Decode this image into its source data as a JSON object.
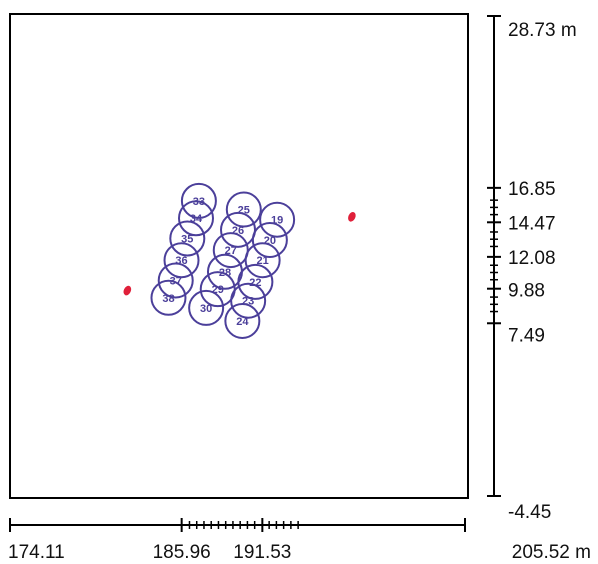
{
  "colors": {
    "frame": "#000000",
    "circle": "#4b3f9a",
    "marker": "#e0203a",
    "text": "#111111"
  },
  "x_axis": {
    "min": 174.11,
    "max": 205.52,
    "unit": "m",
    "labels": [
      {
        "text": "174.11",
        "value": 174.11
      },
      {
        "text": "185.96",
        "value": 185.96
      },
      {
        "text": "191.53",
        "value": 191.53
      },
      {
        "text": "205.52 m",
        "value": 205.52
      }
    ],
    "minor_ticks": [
      186.5,
      187.0,
      187.5,
      188.0,
      188.5,
      189.0,
      189.5,
      190.0,
      190.5,
      191.0,
      192.0,
      192.5,
      193.0,
      193.5,
      194.0
    ]
  },
  "y_axis": {
    "min": -4.45,
    "max": 28.73,
    "unit": "m",
    "labels": [
      {
        "text": "28.73 m",
        "value": 28.73
      },
      {
        "text": "16.85",
        "value": 16.85
      },
      {
        "text": "14.47",
        "value": 14.47
      },
      {
        "text": "12.08",
        "value": 12.08
      },
      {
        "text": "9.88",
        "value": 9.88
      },
      {
        "text": "7.49",
        "value": 7.49
      },
      {
        "text": "-4.45",
        "value": -4.45
      }
    ],
    "minor_ticks": [
      16.0,
      15.5,
      15.0,
      13.8,
      13.3,
      12.8,
      11.5,
      11.0,
      10.5,
      9.3,
      8.8,
      8.3
    ]
  },
  "circles": [
    {
      "label": "33",
      "x": 187.15,
      "y": 15.95
    },
    {
      "label": "25",
      "x": 190.25,
      "y": 15.35
    },
    {
      "label": "19",
      "x": 192.55,
      "y": 14.65
    },
    {
      "label": "34",
      "x": 186.95,
      "y": 14.75
    },
    {
      "label": "26",
      "x": 189.85,
      "y": 13.95
    },
    {
      "label": "20",
      "x": 192.05,
      "y": 13.25
    },
    {
      "label": "35",
      "x": 186.35,
      "y": 13.35
    },
    {
      "label": "27",
      "x": 189.35,
      "y": 12.55
    },
    {
      "label": "21",
      "x": 191.55,
      "y": 11.85
    },
    {
      "label": "36",
      "x": 185.95,
      "y": 11.85
    },
    {
      "label": "28",
      "x": 188.95,
      "y": 11.05
    },
    {
      "label": "22",
      "x": 191.05,
      "y": 10.35
    },
    {
      "label": "37",
      "x": 185.55,
      "y": 10.45
    },
    {
      "label": "29",
      "x": 188.45,
      "y": 9.85
    },
    {
      "label": "23",
      "x": 190.55,
      "y": 9.05
    },
    {
      "label": "38",
      "x": 185.05,
      "y": 9.25
    },
    {
      "label": "30",
      "x": 187.65,
      "y": 8.55
    },
    {
      "label": "24",
      "x": 190.15,
      "y": 7.65
    }
  ],
  "markers": [
    {
      "x": 182.21,
      "y": 9.75
    },
    {
      "x": 197.71,
      "y": 14.85
    }
  ]
}
